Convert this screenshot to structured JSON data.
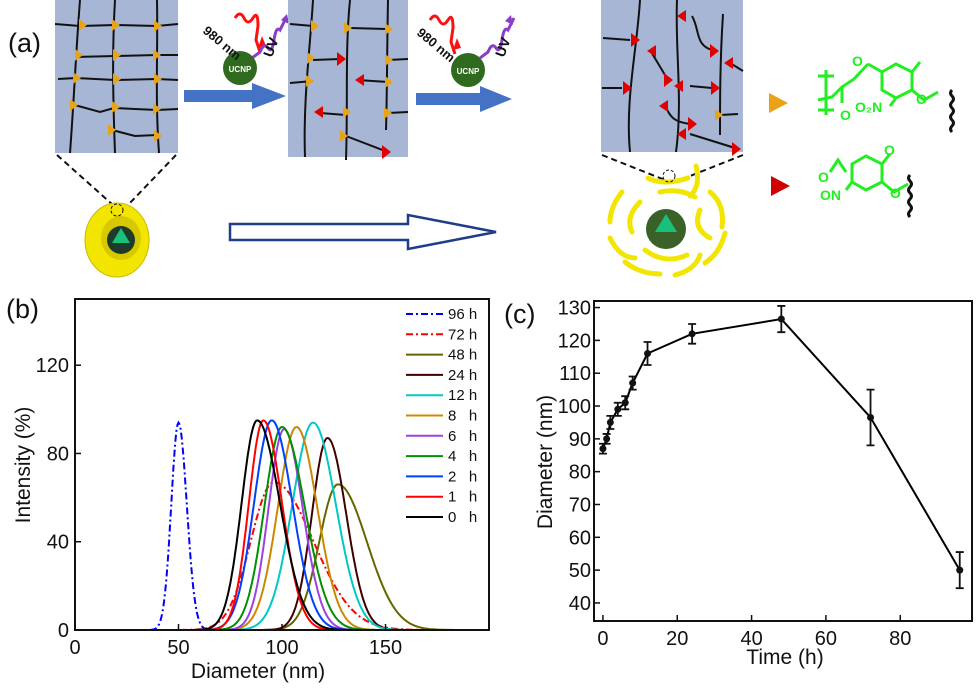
{
  "panel_a": {
    "label": "(a)",
    "excitation_label": "980 nm",
    "emission_label": "UV",
    "particle_label": "UCNP",
    "chem_top": {
      "nitro": "O₂N",
      "oxygen": "O"
    },
    "chem_bottom": {
      "nitroso": "ON",
      "oxygen": "O"
    },
    "colors": {
      "gel_bg": "#a7b6d4",
      "arrow": "#4472c4",
      "hollow_arrow": "#1f3c88",
      "shell": "#f2e600",
      "ucnp": "#2f6a1f",
      "chem": "#22ee22",
      "cleavable_group": "#e8a317",
      "cleaved_group": "#e00000"
    },
    "icons": [
      "gel-network-icon",
      "ucnp-sphere-icon",
      "core-shell-particle-icon",
      "dissociated-particle-icon",
      "gold-triangle-icon",
      "red-triangle-icon"
    ]
  },
  "chart_data": [
    {
      "panel_label": "(b)",
      "type": "line",
      "xlabel": "Diameter (nm)",
      "ylabel": "Intensity (%)",
      "xlim": [
        0,
        200
      ],
      "ylim": [
        0,
        150
      ],
      "xticks": [
        0,
        50,
        100,
        150
      ],
      "yticks": [
        0,
        40,
        80,
        120
      ],
      "grid": false,
      "legend_position": "top-right",
      "series": [
        {
          "name": "96 h",
          "color": "#0000ff",
          "dash": "dashdot",
          "peak_diameter": 50,
          "peak_intensity": 94,
          "sigma_left": 3.5,
          "sigma_right": 4
        },
        {
          "name": "72 h",
          "color": "#ff0000",
          "dash": "dashdot",
          "peak_diameter": 96,
          "peak_intensity": 67,
          "sigma_left": 11,
          "sigma_right": 19
        },
        {
          "name": "48 h",
          "color": "#666600",
          "dash": "solid",
          "peak_diameter": 127,
          "peak_intensity": 66,
          "sigma_left": 9,
          "sigma_right": 14
        },
        {
          "name": "24 h",
          "color": "#400000",
          "dash": "solid",
          "peak_diameter": 122,
          "peak_intensity": 87,
          "sigma_left": 7.5,
          "sigma_right": 9
        },
        {
          "name": "12 h",
          "color": "#00c8c8",
          "dash": "solid",
          "peak_diameter": 115,
          "peak_intensity": 94,
          "sigma_left": 10,
          "sigma_right": 11
        },
        {
          "name": "8   h",
          "color": "#cc8800",
          "dash": "solid",
          "peak_diameter": 107,
          "peak_intensity": 92,
          "sigma_left": 9,
          "sigma_right": 10
        },
        {
          "name": "6   h",
          "color": "#a040e0",
          "dash": "solid",
          "peak_diameter": 101,
          "peak_intensity": 91,
          "sigma_left": 7.5,
          "sigma_right": 9
        },
        {
          "name": "4   h",
          "color": "#009000",
          "dash": "solid",
          "peak_diameter": 100,
          "peak_intensity": 92,
          "sigma_left": 8.5,
          "sigma_right": 11
        },
        {
          "name": "2   h",
          "color": "#0040ff",
          "dash": "solid",
          "peak_diameter": 95,
          "peak_intensity": 95,
          "sigma_left": 8.5,
          "sigma_right": 10
        },
        {
          "name": "1   h",
          "color": "#ff0000",
          "dash": "solid",
          "peak_diameter": 91,
          "peak_intensity": 95,
          "sigma_left": 7,
          "sigma_right": 9
        },
        {
          "name": "0   h",
          "color": "#000000",
          "dash": "solid",
          "peak_diameter": 88,
          "peak_intensity": 95,
          "sigma_left": 7.5,
          "sigma_right": 11
        }
      ]
    },
    {
      "panel_label": "(c)",
      "type": "line",
      "xlabel": "Time (h)",
      "ylabel": "Diameter (nm)",
      "xlim": [
        -2.4,
        99.3
      ],
      "ylim": [
        34.5,
        132
      ],
      "xticks": [
        0,
        20,
        40,
        60,
        80
      ],
      "yticks": [
        40,
        50,
        60,
        70,
        80,
        90,
        100,
        110,
        120,
        130
      ],
      "grid": false,
      "color": "#000000",
      "x": [
        0,
        1,
        2,
        4,
        6,
        8,
        12,
        24,
        48,
        72,
        96
      ],
      "y": [
        87,
        90,
        95,
        99,
        101,
        107,
        116,
        122,
        126.5,
        96.5,
        50
      ],
      "error": [
        1.5,
        1.5,
        2,
        2,
        2,
        2,
        3.5,
        3,
        4,
        8.5,
        5.5
      ]
    }
  ]
}
